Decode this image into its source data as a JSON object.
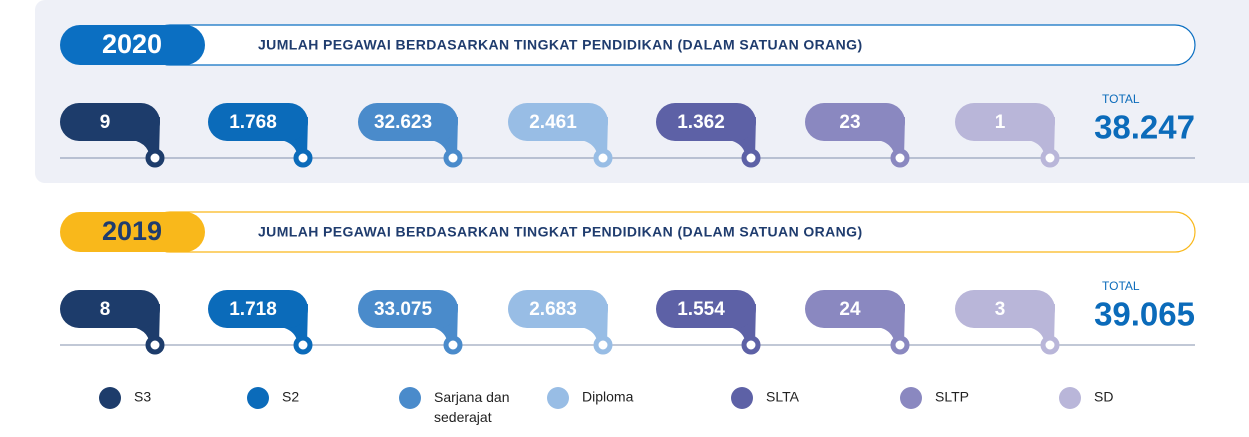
{
  "panels": [
    {
      "year": "2020",
      "year_color": "#0b6fc2",
      "title": "JUMLAH PEGAWAI BERDASARKAN TINGKAT PENDIDIKAN (DALAM SATUAN ORANG)",
      "values": [
        "9",
        "1.768",
        "32.623",
        "2.461",
        "1.362",
        "23",
        "1"
      ],
      "total_label": "TOTAL",
      "total": "38.247"
    },
    {
      "year": "2019",
      "year_color": "#f9b81b",
      "title": "JUMLAH PEGAWAI BERDASARKAN TINGKAT PENDIDIKAN (DALAM SATUAN ORANG)",
      "values": [
        "8",
        "1.718",
        "33.075",
        "2.683",
        "1.554",
        "24",
        "3"
      ],
      "total_label": "TOTAL",
      "total": "39.065"
    }
  ],
  "legend": [
    {
      "label": "S3",
      "color": "#1d3c6b"
    },
    {
      "label": "S2",
      "color": "#0b6bba"
    },
    {
      "label": "Sarjana dan sederajat",
      "color": "#4a8bcb"
    },
    {
      "label": "Diploma",
      "color": "#98bde5"
    },
    {
      "label": "SLTA",
      "color": "#5d61a6"
    },
    {
      "label": "SLTP",
      "color": "#8a88c0"
    },
    {
      "label": "SD",
      "color": "#b9b6d9"
    }
  ]
}
